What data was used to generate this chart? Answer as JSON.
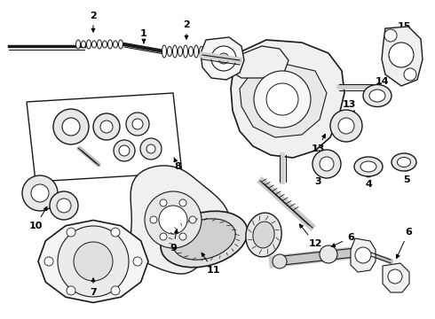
{
  "bg_color": "#ffffff",
  "line_color": "#1a1a1a",
  "label_color": "#000000",
  "label_fontsize": 8,
  "fig_width": 4.9,
  "fig_height": 3.6,
  "dpi": 100
}
